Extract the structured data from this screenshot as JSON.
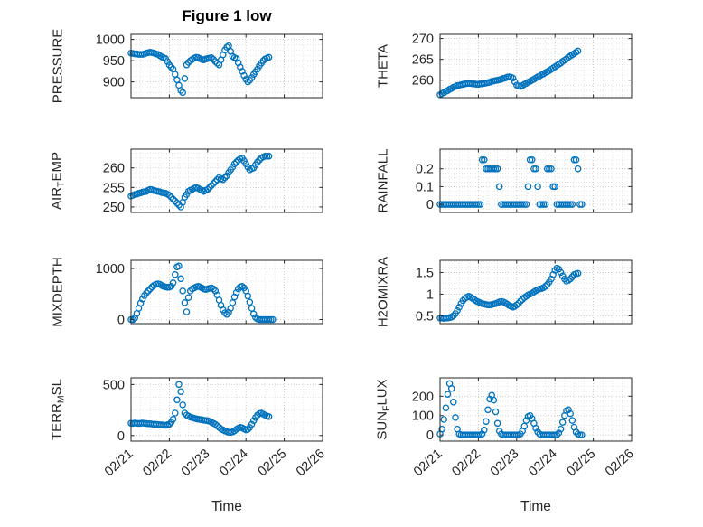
{
  "figure": {
    "title": "Figure 1 low",
    "xlabel": "Time"
  },
  "axis": {
    "xlim": [
      0,
      5
    ],
    "x_tick_labels": [
      "02/21",
      "02/22",
      "02/23",
      "02/24",
      "02/25",
      "02/26"
    ],
    "marker_color": "#0072BD",
    "marker_radius": 3.1,
    "axes_color": "#262626",
    "grid_color": "#c0c0c0",
    "minor_grid_color": "#e0e0e0"
  },
  "chart_data": [
    {
      "type": "scatter",
      "id": "pressure",
      "name": "PRESSURE",
      "ylabel": "PRESSURE",
      "ylim": [
        863,
        1012
      ],
      "yticks": [
        900,
        950,
        1000
      ],
      "ytick_labels": [
        "900",
        "950",
        "1000"
      ],
      "x0": 0,
      "dx": 0.05,
      "values": [
        968,
        967,
        966,
        966,
        965,
        965,
        965,
        966,
        968,
        969,
        970,
        969,
        968,
        966,
        965,
        962,
        959,
        957,
        955,
        948,
        940,
        935,
        930,
        918,
        905,
        892,
        880,
        875,
        908,
        940,
        946,
        950,
        953,
        956,
        958,
        957,
        955,
        953,
        952,
        954,
        955,
        956,
        957,
        953,
        948,
        944,
        940,
        952,
        964,
        975,
        982,
        985,
        972,
        960,
        957,
        955,
        945,
        935,
        925,
        915,
        906,
        900,
        904,
        910,
        918,
        924,
        930,
        938,
        944,
        950,
        954,
        956,
        958
      ]
    },
    {
      "type": "scatter",
      "id": "theta",
      "name": "THETA",
      "ylabel": "THETA",
      "ylim": [
        255.8,
        271
      ],
      "yticks": [
        260,
        265,
        270
      ],
      "ytick_labels": [
        "260",
        "265",
        "270"
      ],
      "x0": 0,
      "dx": 0.05,
      "values": [
        256.5,
        256.8,
        257.0,
        257.3,
        257.5,
        257.8,
        258.0,
        258.3,
        258.5,
        258.7,
        258.8,
        258.9,
        259.0,
        259.1,
        259.2,
        259.2,
        259.2,
        259.1,
        259.1,
        259.0,
        259.0,
        259.1,
        259.1,
        259.2,
        259.3,
        259.4,
        259.5,
        259.7,
        259.8,
        259.9,
        260.0,
        260.1,
        260.2,
        260.4,
        260.5,
        260.7,
        260.8,
        260.7,
        260.5,
        259.6,
        258.8,
        258.6,
        258.5,
        258.7,
        259.0,
        259.2,
        259.5,
        259.7,
        260.0,
        260.2,
        260.5,
        260.8,
        261.0,
        261.3,
        261.5,
        261.8,
        262.0,
        262.3,
        262.6,
        262.9,
        263.2,
        263.5,
        263.8,
        264.1,
        264.5,
        264.8,
        265.1,
        265.5,
        265.8,
        266.1,
        266.4,
        266.7,
        267.0
      ]
    },
    {
      "type": "scatter",
      "id": "air-temp",
      "name": "AIR_TEMP",
      "ylabel": "AIR_TEMP",
      "ylim": [
        248.6,
        264.8
      ],
      "yticks": [
        250,
        255,
        260
      ],
      "ytick_labels": [
        "250",
        "255",
        "260"
      ],
      "x0": 0,
      "dx": 0.05,
      "values": [
        252.8,
        253.0,
        253.2,
        253.3,
        253.5,
        253.6,
        253.8,
        253.9,
        254.0,
        254.3,
        254.5,
        254.4,
        254.2,
        254.1,
        254.0,
        253.9,
        253.7,
        253.6,
        253.5,
        253.3,
        253.0,
        252.5,
        252.0,
        251.5,
        251.0,
        250.5,
        250.0,
        251.2,
        252.5,
        253.2,
        254.0,
        254.3,
        254.5,
        254.8,
        255.0,
        254.8,
        254.5,
        254.3,
        254.0,
        254.3,
        254.5,
        255.0,
        255.5,
        256.0,
        256.5,
        257.0,
        257.5,
        257.2,
        257.0,
        257.5,
        258.0,
        258.8,
        259.5,
        260.2,
        261.0,
        261.5,
        262.0,
        262.3,
        262.5,
        261.8,
        261.0,
        260.2,
        259.5,
        259.8,
        260.0,
        260.8,
        261.5,
        262.0,
        262.5,
        262.8,
        263.0,
        263.0,
        263.0
      ]
    },
    {
      "type": "scatter",
      "id": "rainfall",
      "name": "RAINFALL",
      "ylabel": "RAINFALL",
      "ylim": [
        -0.045,
        0.31
      ],
      "yticks": [
        0,
        0.1,
        0.2
      ],
      "ytick_labels": [
        "0",
        "0.1",
        "0.2"
      ],
      "x0": 0,
      "dx": 0.05,
      "values": [
        0,
        0,
        0,
        0,
        0,
        0,
        0,
        0,
        0,
        0,
        0,
        0,
        0,
        0,
        0,
        0,
        0,
        0,
        0,
        0,
        0,
        0,
        0.25,
        0.25,
        0.2,
        0.2,
        0.2,
        0.2,
        0.2,
        0.2,
        0.2,
        0.1,
        0,
        0,
        0,
        0,
        0,
        0,
        0,
        0,
        0,
        0,
        0,
        0,
        0,
        0,
        0.1,
        0.25,
        0.25,
        0.2,
        0.2,
        0.1,
        0,
        0,
        0,
        0,
        0.2,
        0.2,
        0.2,
        0.1,
        0.1,
        0,
        0,
        0,
        0,
        0,
        0,
        0,
        0,
        0,
        0.25,
        0.25,
        0.2,
        0,
        0
      ]
    },
    {
      "type": "scatter",
      "id": "mixdepth",
      "name": "MIXDEPTH",
      "ylabel": "MIXDEPTH",
      "ylim": [
        -80,
        1160
      ],
      "yticks": [
        0,
        1000
      ],
      "ytick_labels": [
        "0",
        "1000"
      ],
      "x0": 0,
      "dx": 0.05,
      "values": [
        0,
        0,
        30,
        120,
        220,
        320,
        400,
        470,
        520,
        560,
        600,
        640,
        670,
        690,
        700,
        690,
        670,
        650,
        640,
        630,
        635,
        650,
        720,
        880,
        1030,
        1050,
        800,
        560,
        330,
        150,
        430,
        560,
        600,
        620,
        640,
        650,
        640,
        620,
        600,
        590,
        600,
        610,
        620,
        600,
        560,
        480,
        380,
        280,
        190,
        130,
        100,
        140,
        220,
        330,
        440,
        530,
        600,
        640,
        650,
        620,
        560,
        460,
        340,
        220,
        110,
        40,
        10,
        0,
        0,
        0,
        0,
        0,
        0,
        0,
        0
      ]
    },
    {
      "type": "scatter",
      "id": "h2omixra",
      "name": "H2OMIXRA",
      "ylabel": "H2OMIXRA",
      "ylim": [
        0.32,
        1.78
      ],
      "yticks": [
        0.5,
        1,
        1.5
      ],
      "ytick_labels": [
        "0.5",
        "1",
        "1.5"
      ],
      "x0": 0,
      "dx": 0.05,
      "values": [
        0.45,
        0.45,
        0.44,
        0.45,
        0.45,
        0.46,
        0.47,
        0.5,
        0.55,
        0.62,
        0.7,
        0.78,
        0.85,
        0.9,
        0.93,
        0.95,
        0.93,
        0.9,
        0.87,
        0.84,
        0.82,
        0.8,
        0.78,
        0.77,
        0.76,
        0.75,
        0.75,
        0.76,
        0.77,
        0.78,
        0.8,
        0.82,
        0.83,
        0.82,
        0.8,
        0.77,
        0.74,
        0.72,
        0.7,
        0.72,
        0.75,
        0.79,
        0.84,
        0.88,
        0.92,
        0.95,
        0.98,
        1.0,
        1.02,
        1.05,
        1.08,
        1.1,
        1.12,
        1.13,
        1.15,
        1.18,
        1.22,
        1.28,
        1.35,
        1.45,
        1.55,
        1.6,
        1.58,
        1.5,
        1.42,
        1.35,
        1.3,
        1.32,
        1.35,
        1.4,
        1.45,
        1.47,
        1.48
      ]
    },
    {
      "type": "scatter",
      "id": "terr-msl",
      "name": "TERR_MSL",
      "ylabel": "TERR_MSL",
      "ylim": [
        -55,
        565
      ],
      "yticks": [
        0,
        500
      ],
      "ytick_labels": [
        "0",
        "500"
      ],
      "x0": 0,
      "dx": 0.05,
      "values": [
        120,
        118,
        122,
        120,
        118,
        120,
        122,
        120,
        118,
        115,
        115,
        112,
        110,
        110,
        108,
        105,
        105,
        102,
        100,
        105,
        110,
        130,
        160,
        220,
        350,
        500,
        430,
        300,
        220,
        200,
        190,
        180,
        175,
        170,
        165,
        160,
        158,
        155,
        150,
        148,
        145,
        140,
        130,
        120,
        110,
        95,
        80,
        65,
        55,
        45,
        38,
        32,
        30,
        35,
        45,
        60,
        72,
        80,
        75,
        65,
        55,
        60,
        80,
        110,
        145,
        175,
        200,
        215,
        220,
        210,
        200,
        190,
        185
      ]
    },
    {
      "type": "scatter",
      "id": "sun-flux",
      "name": "SUN_FLUX",
      "ylabel": "SUN_FLUX",
      "ylim": [
        -32,
        295
      ],
      "yticks": [
        0,
        100,
        200
      ],
      "ytick_labels": [
        "0",
        "100",
        "200"
      ],
      "x0": 0,
      "dx": 0.05,
      "values": [
        5,
        30,
        80,
        140,
        210,
        265,
        240,
        170,
        90,
        30,
        5,
        0,
        0,
        0,
        0,
        0,
        0,
        0,
        0,
        0,
        0,
        0,
        5,
        25,
        70,
        130,
        185,
        205,
        180,
        120,
        60,
        20,
        5,
        0,
        0,
        0,
        0,
        0,
        0,
        0,
        0,
        0,
        5,
        20,
        45,
        75,
        95,
        100,
        85,
        60,
        35,
        15,
        5,
        0,
        0,
        0,
        0,
        0,
        0,
        0,
        0,
        0,
        10,
        30,
        65,
        100,
        125,
        130,
        110,
        75,
        40,
        15,
        5,
        0,
        0
      ]
    }
  ]
}
